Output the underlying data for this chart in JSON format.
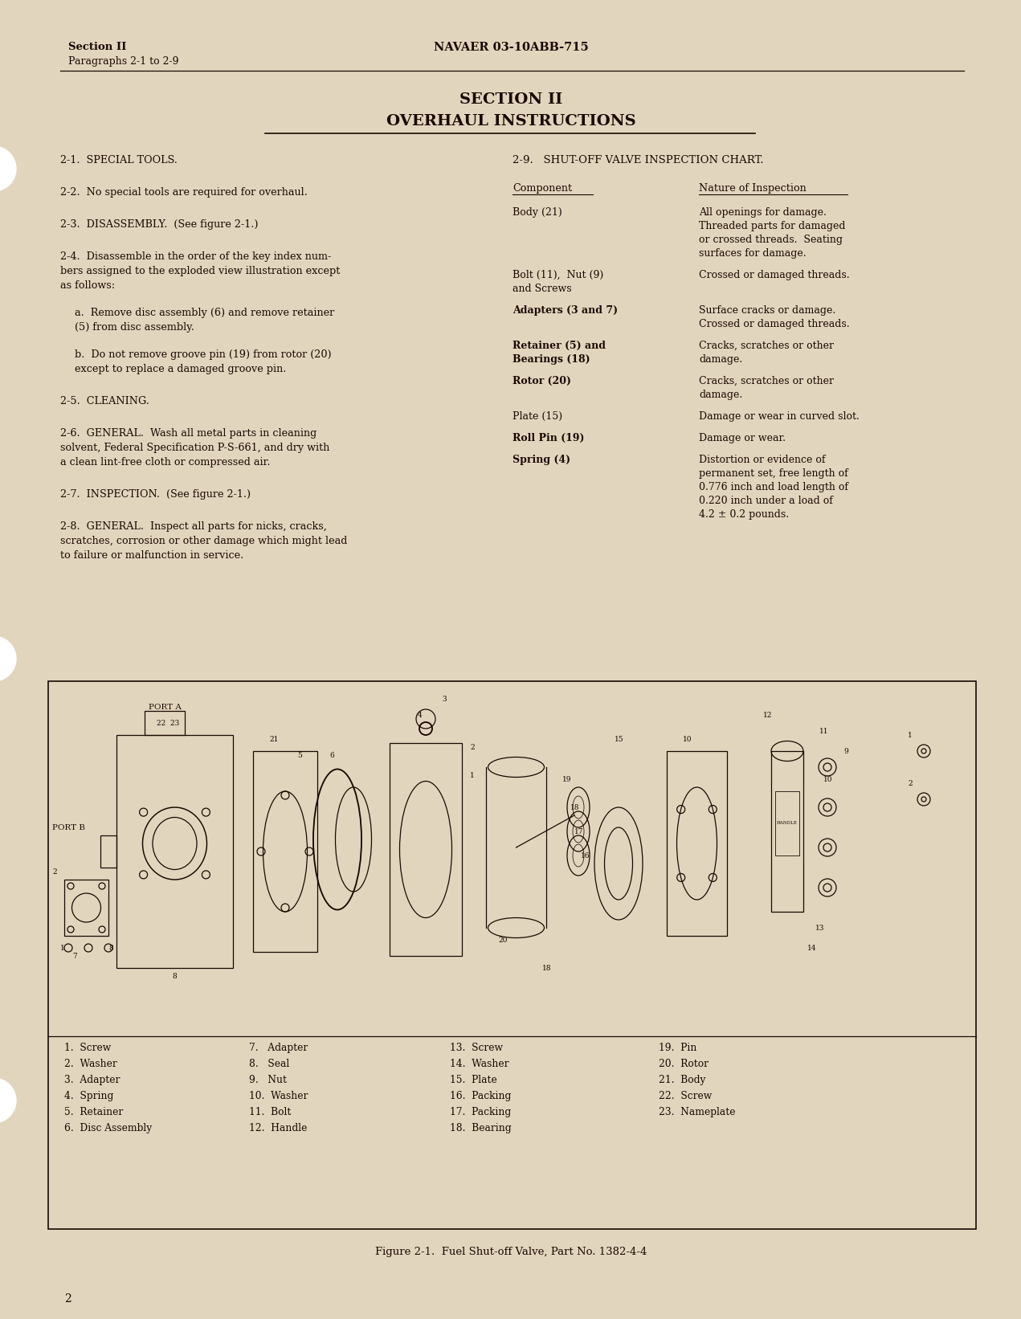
{
  "bg_color": "#e2d5be",
  "text_color": "#1a0800",
  "header_left_line1": "Section II",
  "header_left_line2": "Paragraphs 2-1 to 2-9",
  "header_center": "NAVAER 03-10ABB-715",
  "section_title": "SECTION II",
  "section_subtitle": "OVERHAUL INSTRUCTIONS",
  "right_section_heading": "2-9.   SHUT-OFF VALVE INSPECTION CHART.",
  "col1_header": "Component",
  "col2_header": "Nature of Inspection",
  "inspection_items": [
    {
      "component": "Body (21)",
      "bold_comp": false,
      "nature": [
        "All openings for damage.",
        "Threaded parts for damaged",
        "or crossed threads.  Seating",
        "surfaces for damage."
      ]
    },
    {
      "component": "Bolt (11),  Nut (9)",
      "comp_line2": "and Screws",
      "bold_comp": false,
      "nature": [
        "Crossed or damaged threads."
      ]
    },
    {
      "component": "Adapters (3 and 7)",
      "bold_comp": true,
      "nature": [
        "Surface cracks or damage.",
        "Crossed or damaged threads."
      ]
    },
    {
      "component": "Retainer (5) and",
      "comp_line2": "Bearings (18)",
      "bold_comp": true,
      "nature": [
        "Cracks, scratches or other",
        "damage."
      ]
    },
    {
      "component": "Rotor (20)",
      "bold_comp": true,
      "nature": [
        "Cracks, scratches or other",
        "damage."
      ]
    },
    {
      "component": "Plate (15)",
      "bold_comp": false,
      "nature": [
        "Damage or wear in curved slot."
      ]
    },
    {
      "component": "Roll Pin (19)",
      "bold_comp": true,
      "nature": [
        "Damage or wear."
      ]
    },
    {
      "component": "Spring (4)",
      "bold_comp": true,
      "nature": [
        "Distortion or evidence of",
        "permanent set, free length of",
        "0.776 inch and load length of",
        "0.220 inch under a load of",
        "4.2 ± 0.2 pounds."
      ]
    }
  ],
  "figure_caption": "Figure 2-1.  Fuel Shut-off Valve, Part No. 1382-4-4",
  "parts_list": [
    [
      "1.  Screw",
      "7.   Adapter",
      "13.  Screw",
      "19.  Pin"
    ],
    [
      "2.  Washer",
      "8.   Seal",
      "14.  Washer",
      "20.  Rotor"
    ],
    [
      "3.  Adapter",
      "9.   Nut",
      "15.  Plate",
      "21.  Body"
    ],
    [
      "4.  Spring",
      "10.  Washer",
      "16.  Packing",
      "22.  Screw"
    ],
    [
      "5.  Retainer",
      "11.  Bolt",
      "17.  Packing",
      "23.  Nameplate"
    ],
    [
      "6.  Disc Assembly",
      "12.  Handle",
      "18.  Bearing",
      ""
    ]
  ],
  "page_number": "2"
}
